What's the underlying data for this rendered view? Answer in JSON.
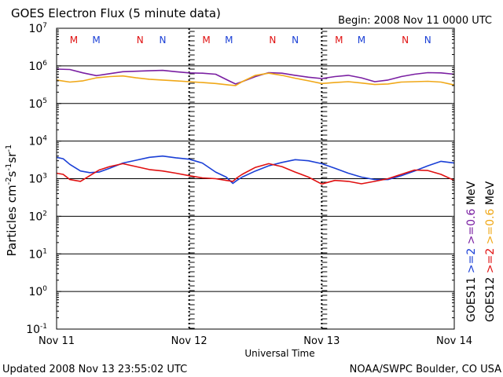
{
  "header": {
    "title": "GOES Electron Flux (5 minute data)",
    "begin": "Begin: 2008 Nov 11 0000 UTC"
  },
  "footer": {
    "updated": "Updated 2008 Nov 13 23:55:02 UTC",
    "credit": "NOAA/SWPC Boulder, CO USA"
  },
  "colors": {
    "goes11_ge2": "#1a3fd6",
    "goes11_ge06": "#7a1fa2",
    "goes12_ge2": "#e01010",
    "goes12_ge06": "#f0a818",
    "marker_m": "#e01010",
    "marker_m_alt": "#1a3fd6"
  },
  "chart_data": {
    "type": "line",
    "title": "GOES Electron Flux (5 minute data)",
    "xlabel": "Universal Time",
    "ylabel": "Particles cm^-2 s^-1 sr^-1",
    "yscale": "log",
    "ylim": [
      0.1,
      10000000
    ],
    "xlim": [
      0,
      3
    ],
    "x_ticks": [
      {
        "x": 0,
        "label": "Nov 11"
      },
      {
        "x": 1,
        "label": "Nov 12"
      },
      {
        "x": 2,
        "label": "Nov 13"
      },
      {
        "x": 3,
        "label": "Nov 14"
      }
    ],
    "y_ticks": [
      {
        "base": "10",
        "exp": "7",
        "value": 10000000
      },
      {
        "base": "10",
        "exp": "6",
        "value": 1000000
      },
      {
        "base": "10",
        "exp": "5",
        "value": 100000
      },
      {
        "base": "10",
        "exp": "4",
        "value": 10000
      },
      {
        "base": "10",
        "exp": "3",
        "value": 1000
      },
      {
        "base": "10",
        "exp": "2",
        "value": 100
      },
      {
        "base": "10",
        "exp": "1",
        "value": 10
      },
      {
        "base": "10",
        "exp": "0",
        "value": 1
      },
      {
        "base": "10",
        "exp": "-1",
        "value": 0.1
      }
    ],
    "threshold": 1000,
    "grid": true,
    "markers": [
      {
        "x": 0.13,
        "label": "M",
        "color": "#e01010"
      },
      {
        "x": 0.3,
        "label": "M",
        "color": "#1a3fd6"
      },
      {
        "x": 0.63,
        "label": "N",
        "color": "#e01010"
      },
      {
        "x": 0.8,
        "label": "N",
        "color": "#1a3fd6"
      },
      {
        "x": 1.13,
        "label": "M",
        "color": "#e01010"
      },
      {
        "x": 1.3,
        "label": "M",
        "color": "#1a3fd6"
      },
      {
        "x": 1.63,
        "label": "N",
        "color": "#e01010"
      },
      {
        "x": 1.8,
        "label": "N",
        "color": "#1a3fd6"
      },
      {
        "x": 2.13,
        "label": "M",
        "color": "#e01010"
      },
      {
        "x": 2.3,
        "label": "M",
        "color": "#1a3fd6"
      },
      {
        "x": 2.63,
        "label": "N",
        "color": "#e01010"
      },
      {
        "x": 2.8,
        "label": "N",
        "color": "#1a3fd6"
      }
    ],
    "legend": {
      "goes11_label": "GOES11",
      "goes12_label": "GOES12",
      "ge2_label": ">=2",
      "ge06_label": ">=0.6",
      "unit": "MeV"
    },
    "series": [
      {
        "name": ">=2 MeV GOES11",
        "color": "#1a3fd6",
        "x": [
          0,
          0.05,
          0.1,
          0.18,
          0.25,
          0.32,
          0.4,
          0.5,
          0.6,
          0.7,
          0.8,
          0.9,
          1.0,
          1.1,
          1.2,
          1.28,
          1.33,
          1.36,
          1.4,
          1.5,
          1.6,
          1.7,
          1.8,
          1.9,
          2.0,
          2.1,
          2.2,
          2.3,
          2.4,
          2.5,
          2.6,
          2.7,
          2.8,
          2.9,
          3.0
        ],
        "y": [
          3700,
          3400,
          2400,
          1600,
          1450,
          1500,
          1900,
          2600,
          3100,
          3700,
          4000,
          3600,
          3300,
          2600,
          1500,
          1100,
          750,
          900,
          1100,
          1600,
          2200,
          2700,
          3200,
          3000,
          2500,
          1900,
          1400,
          1100,
          950,
          950,
          1200,
          1600,
          2200,
          2900,
          2600
        ]
      },
      {
        "name": ">=2 MeV GOES12",
        "color": "#e01010",
        "x": [
          0,
          0.05,
          0.1,
          0.18,
          0.25,
          0.32,
          0.4,
          0.5,
          0.6,
          0.7,
          0.8,
          0.9,
          1.0,
          1.1,
          1.2,
          1.28,
          1.33,
          1.36,
          1.4,
          1.5,
          1.6,
          1.7,
          1.8,
          1.9,
          2.0,
          2.1,
          2.2,
          2.3,
          2.4,
          2.5,
          2.6,
          2.7,
          2.8,
          2.9,
          3.0
        ],
        "y": [
          1400,
          1300,
          950,
          850,
          1200,
          1700,
          2100,
          2500,
          2100,
          1750,
          1600,
          1400,
          1200,
          1050,
          1000,
          900,
          850,
          1050,
          1300,
          2000,
          2500,
          2100,
          1500,
          1100,
          720,
          900,
          850,
          730,
          850,
          1000,
          1300,
          1700,
          1650,
          1300,
          900
        ]
      },
      {
        "name": ">=0.6 MeV GOES11",
        "color": "#7a1fa2",
        "x": [
          0,
          0.1,
          0.2,
          0.3,
          0.4,
          0.5,
          0.6,
          0.7,
          0.8,
          0.9,
          1.0,
          1.1,
          1.2,
          1.3,
          1.35,
          1.4,
          1.5,
          1.6,
          1.7,
          1.8,
          1.9,
          2.0,
          2.1,
          2.2,
          2.3,
          2.4,
          2.5,
          2.6,
          2.7,
          2.8,
          2.9,
          3.0
        ],
        "y": [
          820000,
          800000,
          650000,
          550000,
          620000,
          700000,
          720000,
          740000,
          760000,
          700000,
          650000,
          640000,
          600000,
          400000,
          330000,
          380000,
          520000,
          660000,
          640000,
          560000,
          500000,
          460000,
          520000,
          560000,
          480000,
          380000,
          420000,
          520000,
          600000,
          660000,
          650000,
          600000
        ]
      },
      {
        "name": ">=0.6 MeV GOES12",
        "color": "#f0a818",
        "x": [
          0,
          0.1,
          0.2,
          0.3,
          0.4,
          0.5,
          0.6,
          0.7,
          0.8,
          0.9,
          1.0,
          1.1,
          1.2,
          1.3,
          1.35,
          1.4,
          1.5,
          1.6,
          1.7,
          1.8,
          1.9,
          2.0,
          2.1,
          2.2,
          2.3,
          2.4,
          2.5,
          2.6,
          2.7,
          2.8,
          2.9,
          3.0
        ],
        "y": [
          420000,
          370000,
          400000,
          480000,
          520000,
          540000,
          480000,
          440000,
          420000,
          400000,
          380000,
          360000,
          340000,
          310000,
          300000,
          380000,
          560000,
          640000,
          560000,
          470000,
          400000,
          340000,
          360000,
          380000,
          350000,
          320000,
          330000,
          370000,
          380000,
          390000,
          370000,
          310000
        ]
      }
    ]
  }
}
